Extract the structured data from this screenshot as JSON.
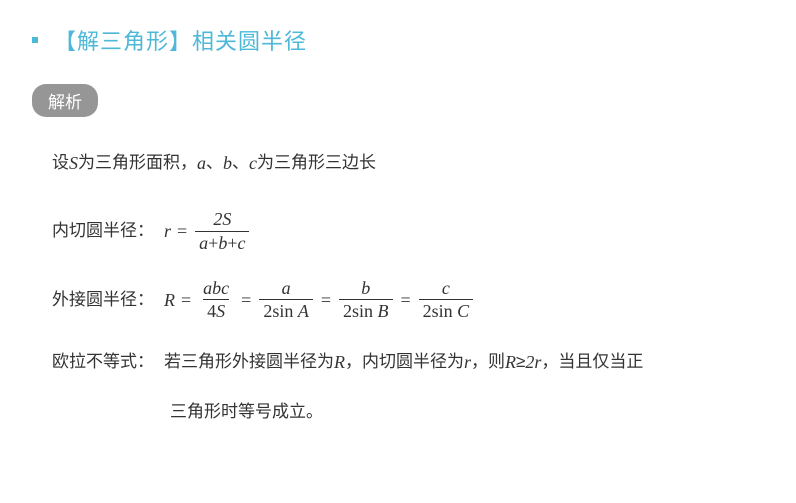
{
  "colors": {
    "title": "#4db8d8",
    "badge_bg": "#969696",
    "badge_fg": "#ffffff",
    "text": "#333333",
    "background": "#ffffff"
  },
  "typography": {
    "title_fontsize": 22,
    "badge_fontsize": 17,
    "body_fontsize": 17,
    "math_fontsize": 18
  },
  "title": "【解三角形】相关圆半径",
  "badge": "解析",
  "intro": {
    "prefix": "设 ",
    "S": "S",
    "mid1": " 为三角形面积，",
    "a": "a",
    "sep1": "、",
    "b": "b",
    "sep2": "、",
    "c": "c",
    "suffix": " 为三角形三边长"
  },
  "inradius": {
    "label": "内切圆半径：",
    "lhs": "r",
    "eq": "=",
    "num": "2S",
    "den_a": "a",
    "den_p1": "+",
    "den_b": "b",
    "den_p2": "+",
    "den_c": "c"
  },
  "circum": {
    "label": "外接圆半径：",
    "lhs": "R",
    "eq": "=",
    "f1_num": "abc",
    "f1_den_coef": "4",
    "f1_den_var": "S",
    "f2_num": "a",
    "f2_den_coef": "2",
    "f2_den_sin": "sin",
    "f2_den_var": "A",
    "f3_num": "b",
    "f3_den_coef": "2",
    "f3_den_sin": "sin",
    "f3_den_var": "B",
    "f4_num": "c",
    "f4_den_coef": "2",
    "f4_den_sin": "sin",
    "f4_den_var": "C"
  },
  "euler": {
    "label": "欧拉不等式：",
    "part1": "若三角形外接圆半径为 ",
    "R": "R",
    "part2": "，内切圆半径为 ",
    "r": "r",
    "part3": "，则 ",
    "ineq_R": "R",
    "ineq_sym": "≥",
    "ineq_2r": "2r",
    "part4": "，当且仅当正",
    "line2": "三角形时等号成立。"
  }
}
